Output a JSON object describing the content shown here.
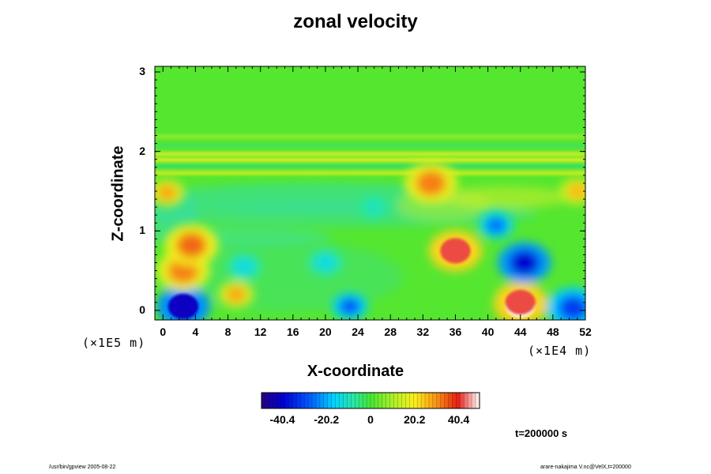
{
  "chart_data": {
    "type": "heatmap",
    "title": "zonal velocity",
    "xlabel": "X-coordinate",
    "ylabel": "Z-coordinate",
    "x_unit_label": "(×1E4 m)",
    "z_unit_label": "(×1E5 m)",
    "xlim": [
      -1,
      52
    ],
    "ylim": [
      -0.12,
      3.07
    ],
    "x_ticks": [
      "0",
      "4",
      "8",
      "12",
      "16",
      "20",
      "24",
      "28",
      "32",
      "36",
      "40",
      "44",
      "48",
      "52"
    ],
    "y_ticks": [
      "0",
      "1",
      "2",
      "3"
    ],
    "colorbar": {
      "range": [
        -50,
        50
      ],
      "tick_labels": [
        "-40.4",
        "-20.2",
        "0",
        "20.2",
        "40.4"
      ],
      "tick_values": [
        -40.4,
        -20.2,
        0,
        20.2,
        40.4
      ]
    },
    "time_label": "t=200000 s",
    "features": [
      {
        "x": 44,
        "z": 0.07,
        "value": 50
      },
      {
        "x": 44,
        "z": 0.1,
        "value": 42
      },
      {
        "x": 2.5,
        "z": 0.05,
        "value": -42
      },
      {
        "x": 44.5,
        "z": 0.6,
        "value": -40
      },
      {
        "x": 36,
        "z": 0.75,
        "value": 42
      },
      {
        "x": 33,
        "z": 1.6,
        "value": 32
      },
      {
        "x": 2.5,
        "z": 0.5,
        "value": 32
      },
      {
        "x": 3.5,
        "z": 0.82,
        "value": 34
      },
      {
        "x": 9,
        "z": 0.2,
        "value": 28
      },
      {
        "x": 23,
        "z": 0.05,
        "value": -30
      },
      {
        "x": 50.5,
        "z": 0.03,
        "value": -32
      },
      {
        "x": 41,
        "z": 1.07,
        "value": -26
      },
      {
        "x": 10,
        "z": 0.55,
        "value": -14
      },
      {
        "x": 20,
        "z": 0.6,
        "value": -14
      },
      {
        "x": 26,
        "z": 1.3,
        "value": -10
      },
      {
        "x": 0.5,
        "z": 1.48,
        "value": 28
      },
      {
        "x": 51,
        "z": 1.5,
        "value": 26
      }
    ]
  },
  "footer": {
    "left": "/usr/bin/gpview 2005-08-22",
    "right": "arare-nakajima  V.nc@VelX,t=200000"
  }
}
